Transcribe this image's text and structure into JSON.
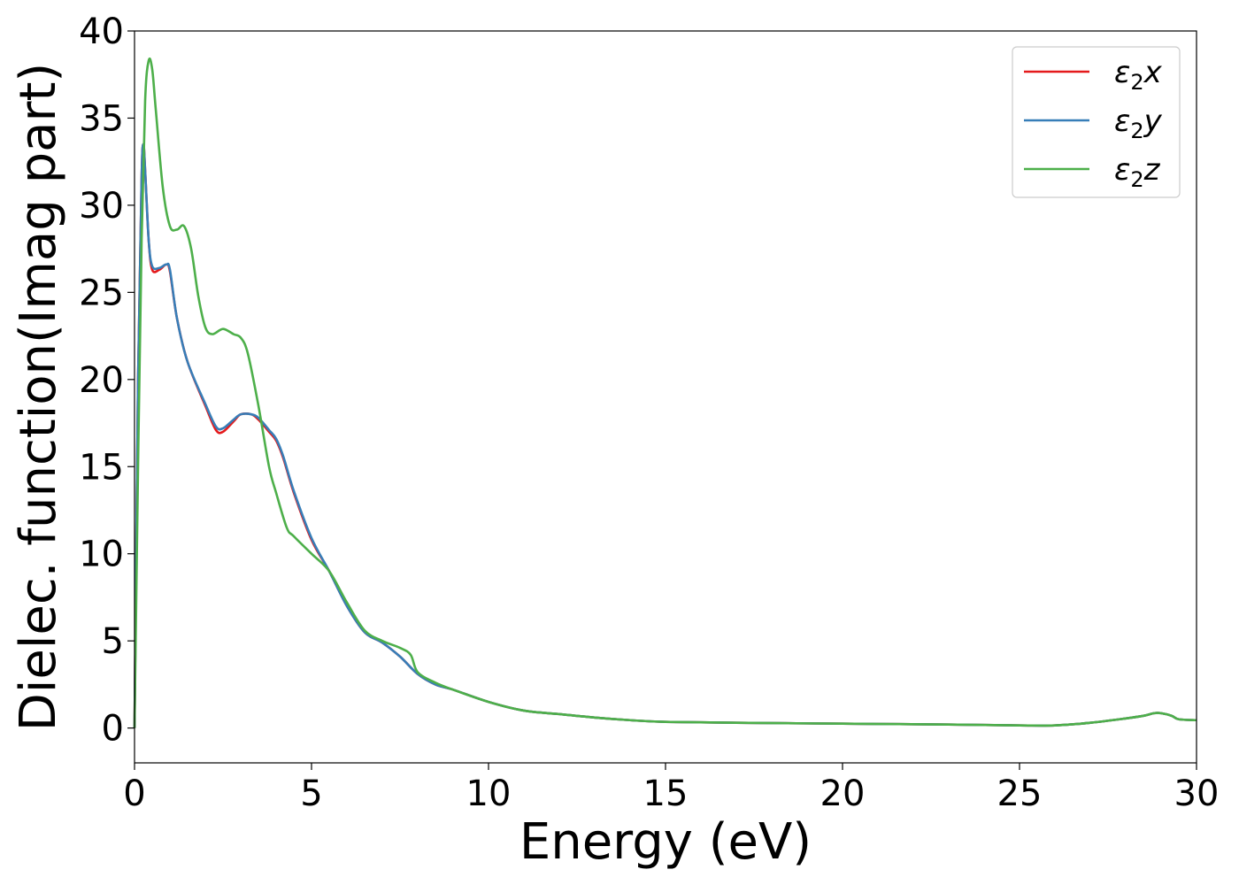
{
  "chart_data": {
    "type": "line",
    "title": "",
    "xlabel": "Energy (eV)",
    "ylabel": "Dielec. function(Imag part)",
    "xlim": [
      0,
      30
    ],
    "ylim": [
      -2,
      40
    ],
    "xticks": [
      "0",
      "5",
      "10",
      "15",
      "20",
      "25",
      "30"
    ],
    "yticks": [
      "0",
      "5",
      "10",
      "15",
      "20",
      "25",
      "30",
      "35",
      "40"
    ],
    "grid": false,
    "legend_position": "top-right",
    "series": [
      {
        "name": "ε₂x",
        "legend_main": "ε",
        "legend_sub": "2",
        "legend_suffix": "x",
        "color": "#e41a1c",
        "x": [
          0,
          0.1,
          0.2,
          0.25,
          0.3,
          0.4,
          0.5,
          0.7,
          0.9,
          1.0,
          1.2,
          1.5,
          2.0,
          2.3,
          2.5,
          2.8,
          3.0,
          3.3,
          3.5,
          3.8,
          4.0,
          4.2,
          4.5,
          5.0,
          5.5,
          6.0,
          6.5,
          7.0,
          7.5,
          8.0,
          8.5,
          9.0,
          10.0,
          11.0,
          12.0,
          13.0,
          14.0,
          15.0,
          17.0,
          20.0,
          23.0,
          25.0,
          26.0,
          27.0,
          28.0,
          28.5,
          28.8,
          29.0,
          29.3,
          29.5,
          30.0
        ],
        "y": [
          0,
          20,
          31.5,
          33.5,
          32,
          28,
          26.3,
          26.3,
          26.6,
          26.2,
          23.5,
          21,
          18.5,
          17.1,
          17.0,
          17.6,
          18.0,
          18.0,
          17.7,
          17.0,
          16.5,
          15.5,
          13.5,
          10.8,
          9.0,
          7.0,
          5.5,
          4.9,
          4.1,
          3.1,
          2.5,
          2.2,
          1.5,
          1.0,
          0.8,
          0.6,
          0.45,
          0.35,
          0.3,
          0.25,
          0.2,
          0.15,
          0.15,
          0.3,
          0.55,
          0.7,
          0.85,
          0.85,
          0.7,
          0.5,
          0.45
        ]
      },
      {
        "name": "ε₂y",
        "legend_main": "ε",
        "legend_sub": "2",
        "legend_suffix": "y",
        "color": "#377eb8",
        "x": [
          0,
          0.1,
          0.2,
          0.25,
          0.3,
          0.4,
          0.5,
          0.7,
          0.9,
          1.0,
          1.2,
          1.5,
          2.0,
          2.3,
          2.5,
          2.8,
          3.0,
          3.3,
          3.5,
          3.8,
          4.0,
          4.2,
          4.5,
          5.0,
          5.5,
          6.0,
          6.5,
          7.0,
          7.5,
          8.0,
          8.5,
          9.0,
          10.0,
          11.0,
          12.0,
          13.0,
          14.0,
          15.0,
          17.0,
          20.0,
          23.0,
          25.0,
          26.0,
          27.0,
          28.0,
          28.5,
          28.8,
          29.0,
          29.3,
          29.5,
          30.0
        ],
        "y": [
          0,
          20,
          31.5,
          33.5,
          32,
          28,
          26.5,
          26.4,
          26.6,
          26.3,
          23.5,
          21,
          18.6,
          17.3,
          17.2,
          17.7,
          18.0,
          18.0,
          17.8,
          17.1,
          16.6,
          15.6,
          13.6,
          10.9,
          9.0,
          7.0,
          5.5,
          4.9,
          4.1,
          3.1,
          2.5,
          2.2,
          1.5,
          1.0,
          0.8,
          0.6,
          0.45,
          0.35,
          0.3,
          0.25,
          0.2,
          0.15,
          0.15,
          0.3,
          0.55,
          0.7,
          0.85,
          0.85,
          0.7,
          0.5,
          0.45
        ]
      },
      {
        "name": "ε₂z",
        "legend_main": "ε",
        "legend_sub": "2",
        "legend_suffix": "z",
        "color": "#4daf4a",
        "x": [
          0,
          0.1,
          0.2,
          0.3,
          0.4,
          0.5,
          0.6,
          0.8,
          1.0,
          1.2,
          1.4,
          1.6,
          1.8,
          2.0,
          2.2,
          2.5,
          2.8,
          3.0,
          3.2,
          3.5,
          3.8,
          4.0,
          4.3,
          4.5,
          5.0,
          5.5,
          6.0,
          6.5,
          7.0,
          7.5,
          7.8,
          8.0,
          8.5,
          9.0,
          10.0,
          11.0,
          12.0,
          13.0,
          14.0,
          15.0,
          17.0,
          20.0,
          23.0,
          25.0,
          26.0,
          27.0,
          28.0,
          28.5,
          28.8,
          29.0,
          29.3,
          29.5,
          30.0
        ],
        "y": [
          0,
          15,
          28,
          36,
          38.3,
          37.8,
          35.5,
          31,
          28.8,
          28.6,
          28.8,
          27.5,
          24.8,
          23.0,
          22.6,
          22.9,
          22.6,
          22.4,
          21.5,
          18.5,
          15.0,
          13.5,
          11.5,
          11.0,
          10.0,
          9.0,
          7.2,
          5.6,
          5.0,
          4.6,
          4.2,
          3.2,
          2.6,
          2.2,
          1.5,
          1.0,
          0.8,
          0.6,
          0.45,
          0.35,
          0.3,
          0.25,
          0.2,
          0.15,
          0.15,
          0.3,
          0.55,
          0.7,
          0.85,
          0.85,
          0.7,
          0.5,
          0.45
        ]
      }
    ]
  }
}
